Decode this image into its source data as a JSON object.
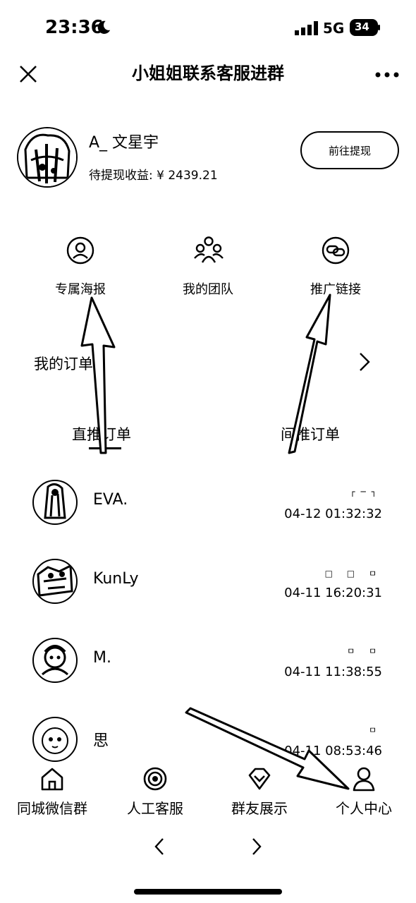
{
  "status_bar": {
    "time": "23:36",
    "network": "5G",
    "battery": "34",
    "icons": [
      "moon-icon",
      "signal-icon",
      "battery-icon"
    ]
  },
  "header": {
    "title": "小姐姐联系客服进群",
    "icons": [
      "close-icon",
      "more-icon"
    ]
  },
  "profile": {
    "username": "A_ 文星宇",
    "pending_earnings": "待提现收益: ¥ 2439.21",
    "withdraw_label": "前往提现"
  },
  "quick_actions": [
    {
      "label": "专属海报",
      "icon": "user-circle-icon"
    },
    {
      "label": "我的团队",
      "icon": "team-icon"
    },
    {
      "label": "推广链接",
      "icon": "link-icon"
    }
  ],
  "orders": {
    "title": "我的订单",
    "tabs": [
      {
        "label": "直推订单",
        "active": true
      },
      {
        "label": "间推订单",
        "active": false
      }
    ],
    "rows": [
      {
        "name": "EVA.",
        "amount": "┌─┐",
        "time": "04-12 01:32:32"
      },
      {
        "name": "KunLy",
        "amount": "□ □ ㅁ",
        "time": "04-11 16:20:31"
      },
      {
        "name": "M.",
        "amount": "ㅁ  ㅁ",
        "time": "04-11 11:38:55"
      },
      {
        "name": "思",
        "amount": "ㅁ",
        "time": "04-11 08:53:46"
      }
    ]
  },
  "bottom_tabs": [
    {
      "label": "同城微信群",
      "icon": "home-icon"
    },
    {
      "label": "人工客服",
      "icon": "service-icon"
    },
    {
      "label": "群友展示",
      "icon": "gem-icon"
    },
    {
      "label": "个人中心",
      "icon": "person-icon"
    }
  ],
  "colors": {
    "foreground": "#000000",
    "background": "#ffffff"
  }
}
